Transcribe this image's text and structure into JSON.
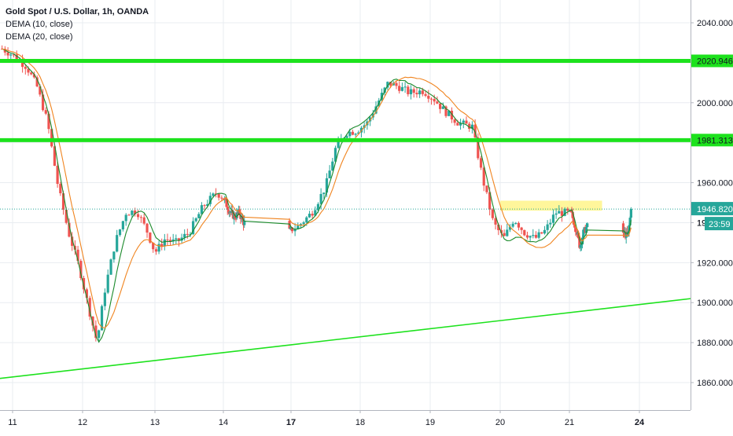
{
  "legend": {
    "title": "Gold Spot / U.S. Dollar, 1h, OANDA",
    "indicator_1": "DEMA (10, close)",
    "indicator_2": "DEMA (20, close)"
  },
  "chart_data": {
    "type": "candlestick",
    "title": "Gold Spot / U.S. Dollar, 1h, OANDA",
    "ylim": [
      1850,
      2050
    ],
    "y_ticks": [
      "1860.000",
      "1880.000",
      "1900.000",
      "1920.000",
      "1940.000",
      "1960.000",
      "1980.000",
      "2000.000",
      "2020.000",
      "2040.000"
    ],
    "x_ticks": [
      {
        "label": "11",
        "day": 11
      },
      {
        "label": "12",
        "day": 12
      },
      {
        "label": "13",
        "day": 13
      },
      {
        "label": "14",
        "day": 14
      },
      {
        "label": "17",
        "day": 17
      },
      {
        "label": "18",
        "day": 18
      },
      {
        "label": "19",
        "day": 19
      },
      {
        "label": "20",
        "day": 20
      },
      {
        "label": "21",
        "day": 21
      },
      {
        "label": "24",
        "day": 24
      }
    ],
    "price_path": [
      [
        10.85,
        2027
      ],
      [
        11.0,
        2024
      ],
      [
        11.2,
        2018
      ],
      [
        11.35,
        2008
      ],
      [
        11.5,
        1990
      ],
      [
        11.65,
        1958
      ],
      [
        11.8,
        1935
      ],
      [
        11.95,
        1918
      ],
      [
        12.1,
        1895
      ],
      [
        12.2,
        1880
      ],
      [
        12.3,
        1905
      ],
      [
        12.45,
        1930
      ],
      [
        12.6,
        1945
      ],
      [
        12.75,
        1946
      ],
      [
        12.9,
        1935
      ],
      [
        13.0,
        1925
      ],
      [
        13.15,
        1932
      ],
      [
        13.3,
        1930
      ],
      [
        13.5,
        1935
      ],
      [
        13.7,
        1948
      ],
      [
        13.9,
        1955
      ],
      [
        14.1,
        1950
      ],
      [
        14.3,
        1945
      ],
      [
        14.5,
        1943
      ],
      [
        14.7,
        1945
      ],
      [
        14.9,
        1940
      ],
      [
        16.9,
        1935
      ],
      [
        17.1,
        1938
      ],
      [
        17.3,
        1945
      ],
      [
        17.5,
        1958
      ],
      [
        17.65,
        1978
      ],
      [
        17.8,
        1985
      ],
      [
        17.95,
        1986
      ],
      [
        18.1,
        1990
      ],
      [
        18.25,
        2000
      ],
      [
        18.4,
        2010
      ],
      [
        18.55,
        2008
      ],
      [
        18.7,
        2005
      ],
      [
        18.9,
        2006
      ],
      [
        19.05,
        2002
      ],
      [
        19.2,
        1996
      ],
      [
        19.4,
        1990
      ],
      [
        19.6,
        1988
      ],
      [
        19.75,
        1962
      ],
      [
        19.9,
        1940
      ],
      [
        20.05,
        1932
      ],
      [
        20.2,
        1942
      ],
      [
        20.35,
        1935
      ],
      [
        20.5,
        1932
      ],
      [
        20.65,
        1936
      ],
      [
        20.8,
        1945
      ],
      [
        20.95,
        1945
      ],
      [
        21.1,
        1944
      ],
      [
        21.3,
        1936
      ],
      [
        21.45,
        1928
      ],
      [
        21.6,
        1935
      ],
      [
        21.75,
        1938
      ],
      [
        23.3,
        1935
      ],
      [
        23.5,
        1933
      ],
      [
        23.65,
        1946.82
      ]
    ],
    "series": [
      {
        "name": "DEMA (10, close)",
        "color": "#1b8a2b"
      },
      {
        "name": "DEMA (20, close)",
        "color": "#f0841f"
      }
    ],
    "horizontal_levels": [
      {
        "label": "2020.946",
        "value": 2020.946,
        "color": "#1de21d"
      },
      {
        "label": "1981.313",
        "value": 1981.313,
        "color": "#1de21d"
      }
    ],
    "trendline": {
      "from": [
        10.8,
        1862
      ],
      "to": [
        24.8,
        1902
      ],
      "color": "#1de21d"
    },
    "resistance_zone": {
      "x_from": 20.0,
      "x_to": 22.4,
      "y_low": 1946,
      "y_high": 1951,
      "color": "#fff48a"
    },
    "last_price": {
      "label": "1946.820",
      "value": 1946.82,
      "color": "#26a69a"
    },
    "countdown": {
      "label": "23:59"
    },
    "hidden_label_fragment": "19",
    "colors": {
      "up": "#26a69a",
      "down": "#ef5350",
      "grid": "#e9ecf1",
      "axis_text": "#131722"
    }
  }
}
